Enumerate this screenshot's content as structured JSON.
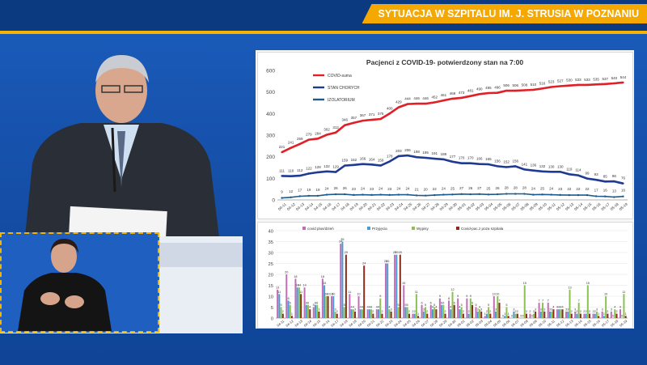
{
  "header": {
    "title": "SYTUACJA W SZPITALU IM. J. STRUSIA W POZNANIU"
  },
  "chart_data": [
    {
      "type": "line",
      "title": "Pacjenci z COVID-19- potwierdzony stan na 7:00",
      "xlabel": "",
      "ylabel": "",
      "ylim": [
        0,
        600
      ],
      "yticks": [
        0,
        100,
        200,
        300,
        400,
        500,
        600
      ],
      "legend_position": "top-left",
      "grid": false,
      "x": [
        "04-11",
        "04-12",
        "04-13",
        "04-14",
        "04-15",
        "04-16",
        "04-17",
        "04-18",
        "04-19",
        "04-20",
        "04-21",
        "04-22",
        "04-23",
        "04-24",
        "04-25",
        "04-26",
        "04-27",
        "04-28",
        "04-29",
        "04-30",
        "05-01",
        "05-02",
        "05-03",
        "05-04",
        "05-05",
        "05-06",
        "05-07",
        "05-08",
        "05-09",
        "05-10",
        "05-11",
        "05-12",
        "05-13",
        "05-14",
        "05-15",
        "05-16",
        "05-17",
        "05-18",
        "05-19"
      ],
      "series": [
        {
          "name": "COVID-suma",
          "color": "#e01f26",
          "values": [
            221,
            241,
            259,
            279,
            284,
            302,
            312,
            346,
            357,
            367,
            371,
            375,
            400,
            429,
            444,
            446,
            446,
            452,
            461,
            469,
            473,
            481,
            490,
            495,
            496,
            506,
            506,
            508,
            510,
            516,
            523,
            527,
            530,
            533,
            533,
            535,
            537,
            540,
            544
          ]
        },
        {
          "name": "STAN CHORYCH",
          "color": "#1f3a93",
          "values": [
            111,
            110,
            112,
            122,
            128,
            132,
            129,
            159,
            162,
            166,
            164,
            159,
            178,
            203,
            206,
            198,
            195,
            191,
            188,
            177,
            170,
            170,
            166,
            165,
            156,
            152,
            156,
            141,
            136,
            132,
            130,
            130,
            119,
            114,
            99,
            93,
            85,
            86,
            76
          ]
        },
        {
          "name": "IZOLATORIUM",
          "color": "#1c5a8c",
          "values": [
            9,
            12,
            17,
            19,
            19,
            24,
            26,
            26,
            23,
            24,
            23,
            24,
            23,
            24,
            24,
            21,
            20,
            22,
            24,
            25,
            27,
            26,
            27,
            25,
            26,
            28,
            28,
            28,
            24,
            25,
            24,
            23,
            22,
            22,
            22,
            17,
            16,
            13,
            16
          ]
        }
      ]
    },
    {
      "type": "bar",
      "title": "",
      "ylim": [
        0,
        40
      ],
      "yticks": [
        0,
        5,
        10,
        15,
        20,
        25,
        30,
        35,
        40
      ],
      "legend_position": "top",
      "grid": true,
      "categories": [
        "04-11",
        "04-12",
        "04-13",
        "04-14",
        "04-15",
        "04-16",
        "04-17",
        "04-18",
        "04-19",
        "04-20",
        "04-21",
        "04-22",
        "04-23",
        "04-24",
        "04-25",
        "04-26",
        "04-27",
        "04-28",
        "04-29",
        "04-30",
        "05-01",
        "05-02",
        "05-03",
        "05-04",
        "05-05",
        "05-06",
        "05-07",
        "05-08",
        "05-09",
        "05-10",
        "05-11",
        "05-12",
        "05-13",
        "05-14",
        "05-15",
        "05-16",
        "05-17",
        "05-18",
        "05-19"
      ],
      "series": [
        {
          "name": "covid plus/dzień",
          "color": "#c06fb6",
          "values": [
            13,
            20,
            18,
            14,
            5,
            18,
            10,
            34,
            11,
            10,
            4,
            4,
            25,
            29,
            15,
            2,
            6,
            6,
            9,
            8,
            9,
            9,
            5,
            1,
            10,
            0,
            0,
            0,
            2,
            7,
            7,
            4,
            3,
            3,
            2,
            2,
            3,
            3,
            4
          ]
        },
        {
          "name": "Przyjęcia",
          "color": "#4a9bd4",
          "values": [
            11,
            8,
            14,
            6,
            6,
            15,
            10,
            35,
            4,
            4,
            4,
            4,
            25,
            29,
            5,
            2,
            3,
            4,
            6,
            4,
            4,
            2,
            3,
            2,
            3,
            1,
            3,
            0,
            0,
            3,
            3,
            4,
            3,
            2,
            2,
            2,
            1,
            0,
            0
          ]
        },
        {
          "name": "Wypisy",
          "color": "#8cc152",
          "values": [
            5,
            6,
            14,
            6,
            6,
            10,
            3,
            5,
            4,
            4,
            4,
            9,
            4,
            5,
            5,
            11,
            5,
            5,
            6,
            12,
            5,
            9,
            4,
            5,
            10,
            5,
            2,
            15,
            2,
            7,
            3,
            4,
            13,
            7,
            15,
            3,
            10,
            4,
            11
          ]
        },
        {
          "name": "Covid-pac.z poza szpitala",
          "color": "#8b2c1a",
          "values": [
            2,
            1,
            11,
            4,
            3,
            10,
            2,
            29,
            3,
            24,
            2,
            2,
            3,
            29,
            2,
            1,
            2,
            4,
            2,
            6,
            2,
            6,
            3,
            2,
            7,
            1,
            2,
            2,
            3,
            3,
            4,
            4,
            2,
            2,
            2,
            1,
            2,
            2,
            1
          ]
        }
      ]
    }
  ]
}
